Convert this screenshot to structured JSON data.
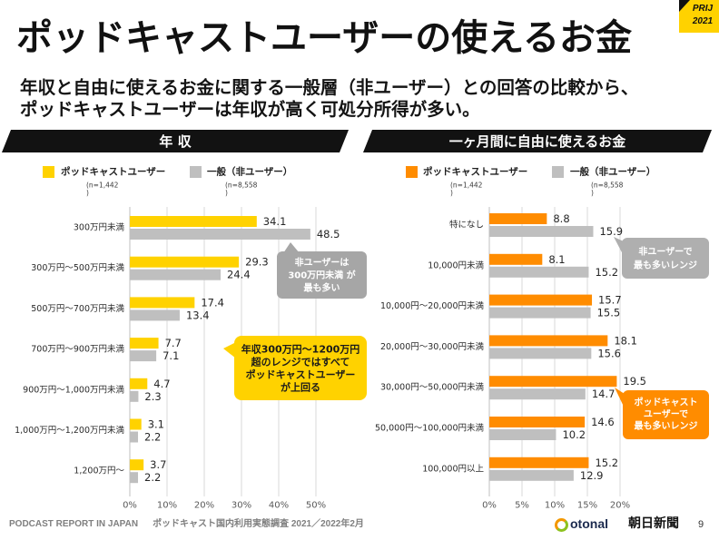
{
  "slide": {
    "title": "ポッドキャストユーザーの使えるお金",
    "subtitle_lines": [
      "年収と自由に使えるお金に関する一般層（非ユーザー）との回答の比較から、",
      "ポッドキャストユーザーは年収が高く可処分所得が多い。"
    ],
    "badge": {
      "line1": "PRIJ",
      "line2": "2021"
    },
    "badge_color": "#FFD200"
  },
  "chart_data": [
    {
      "type": "bar",
      "title": "年 収",
      "categories": [
        "300万円未満",
        "300万円～500万円未満",
        "500万円～700万円未満",
        "700万円～900万円未満",
        "900万円～1,000万円未満",
        "1,000万円～1,200万円未満",
        "1,200万円～"
      ],
      "series": [
        {
          "name": "ポッドキャストユーザー",
          "note": [
            "(n=1,442",
            ")"
          ],
          "color": "#FFD200",
          "values": [
            34.1,
            29.3,
            17.4,
            7.7,
            4.7,
            3.1,
            3.7
          ]
        },
        {
          "name": "一般（非ユーザー）",
          "note": [
            "(n=8,558",
            ")"
          ],
          "color": "#BFBFBF",
          "values": [
            48.5,
            24.4,
            13.4,
            7.1,
            2.3,
            2.2,
            2.2
          ]
        }
      ],
      "xlim": [
        0,
        50
      ],
      "xtick_values": [
        0,
        10,
        20,
        30,
        40,
        50
      ],
      "xtick_labels": [
        "0%",
        "10%",
        "20%",
        "30%",
        "40%",
        "50%"
      ],
      "grid": true,
      "annotations": [
        {
          "lines": [
            "非ユーザーは",
            "300万円未満 が",
            "最も多い"
          ],
          "color": "#A6A6A6",
          "text_color": "#FFFFFF"
        },
        {
          "lines": [
            "年収300万円～1200万円",
            "超のレンジではすべて",
            "ポッドキャストユーザー",
            "が上回る"
          ],
          "color": "#FFD200",
          "text_color": "#1A1A1A"
        }
      ]
    },
    {
      "type": "bar",
      "title": "一ヶ月間に自由に使えるお金",
      "categories": [
        "特になし",
        "10,000円未満",
        "10,000円～20,000円未満",
        "20,000円～30,000円未満",
        "30,000円～50,000円未満",
        "50,000円～100,000円未満",
        "100,000円以上"
      ],
      "series": [
        {
          "name": "ポッドキャストユーザー",
          "note": [
            "(n=1,442",
            ")"
          ],
          "color": "#FF8C00",
          "values": [
            8.8,
            8.1,
            15.7,
            18.1,
            19.5,
            14.6,
            15.2
          ]
        },
        {
          "name": "一般（非ユーザー）",
          "note": [
            "(n=8,558",
            ")"
          ],
          "color": "#BFBFBF",
          "values": [
            15.9,
            15.2,
            15.5,
            15.6,
            14.7,
            10.2,
            12.9
          ]
        }
      ],
      "xlim": [
        0,
        20
      ],
      "xtick_values": [
        0,
        5,
        10,
        15,
        20
      ],
      "xtick_labels": [
        "0%",
        "5%",
        "10%",
        "15%",
        "20%"
      ],
      "grid": true,
      "annotations": [
        {
          "lines": [
            "非ユーザーで",
            "最も多いレンジ"
          ],
          "color": "#AFAFAF",
          "text_color": "#FFFFFF"
        },
        {
          "lines": [
            "ポッドキャスト",
            "ユーザーで",
            "最も多いレンジ"
          ],
          "color": "#FF8C00",
          "text_color": "#FFFFFF"
        }
      ]
    }
  ],
  "footer": {
    "report_name": "PODCAST REPORT IN JAPAN",
    "survey": "ポッドキャスト国内利用実態調査 2021／2022年2月",
    "logo_otonal": "otonal",
    "logo_asahi": "朝日新聞",
    "page_number": "9"
  }
}
